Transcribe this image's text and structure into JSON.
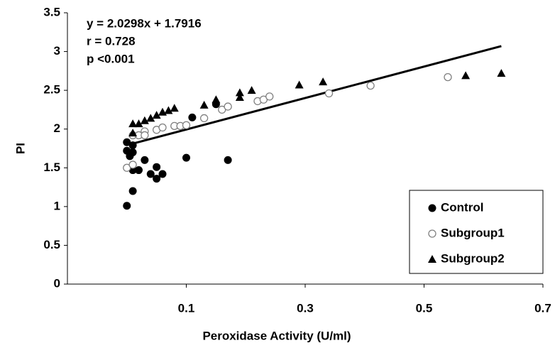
{
  "chart_data": {
    "type": "scatter",
    "x_label": "Peroxidase Activity (U/ml)",
    "y_label": "PI",
    "annotations": [
      "y = 2.0298x + 1.7916",
      "r = 0.728",
      "p <0.001"
    ],
    "xlim": [
      -0.1,
      0.7
    ],
    "xticks": [
      0.1,
      0.3,
      0.5,
      0.7
    ],
    "ylim": [
      0,
      3.5
    ],
    "yticks": [
      0,
      0.5,
      1,
      1.5,
      2,
      2.5,
      3,
      3.5
    ],
    "legend": "lower right",
    "trendline": {
      "x": [
        0.01,
        0.63
      ],
      "y": [
        1.812,
        3.07
      ],
      "color": "#000000"
    },
    "series": [
      {
        "name": "Control",
        "marker": "circle",
        "color": "#000000",
        "x": [
          0.0,
          0.0,
          0.0,
          0.005,
          0.01,
          0.01,
          0.01,
          0.01,
          0.02,
          0.03,
          0.04,
          0.05,
          0.05,
          0.06,
          0.1,
          0.11,
          0.15,
          0.17
        ],
        "values": [
          1.01,
          1.83,
          1.72,
          1.65,
          1.7,
          1.79,
          1.47,
          1.2,
          1.47,
          1.6,
          1.42,
          1.51,
          1.36,
          1.42,
          1.63,
          2.15,
          2.32,
          1.6
        ]
      },
      {
        "name": "Subgroup1",
        "marker": "open-circle",
        "color": "#808080",
        "x": [
          0.0,
          0.01,
          0.01,
          0.02,
          0.03,
          0.03,
          0.05,
          0.06,
          0.08,
          0.09,
          0.1,
          0.13,
          0.16,
          0.17,
          0.22,
          0.23,
          0.24,
          0.34,
          0.41,
          0.54
        ],
        "values": [
          1.5,
          1.54,
          1.92,
          1.92,
          1.97,
          1.92,
          1.99,
          2.02,
          2.04,
          2.04,
          2.05,
          2.14,
          2.25,
          2.29,
          2.36,
          2.38,
          2.42,
          2.46,
          2.56,
          2.67
        ]
      },
      {
        "name": "Subgroup2",
        "marker": "triangle",
        "color": "#000000",
        "x": [
          0.01,
          0.01,
          0.02,
          0.03,
          0.04,
          0.05,
          0.06,
          0.07,
          0.08,
          0.13,
          0.15,
          0.19,
          0.19,
          0.21,
          0.29,
          0.33,
          0.57,
          0.63
        ],
        "values": [
          2.07,
          1.95,
          2.07,
          2.11,
          2.14,
          2.18,
          2.22,
          2.24,
          2.27,
          2.31,
          2.38,
          2.47,
          2.41,
          2.5,
          2.57,
          2.61,
          2.69,
          2.72
        ]
      }
    ]
  }
}
